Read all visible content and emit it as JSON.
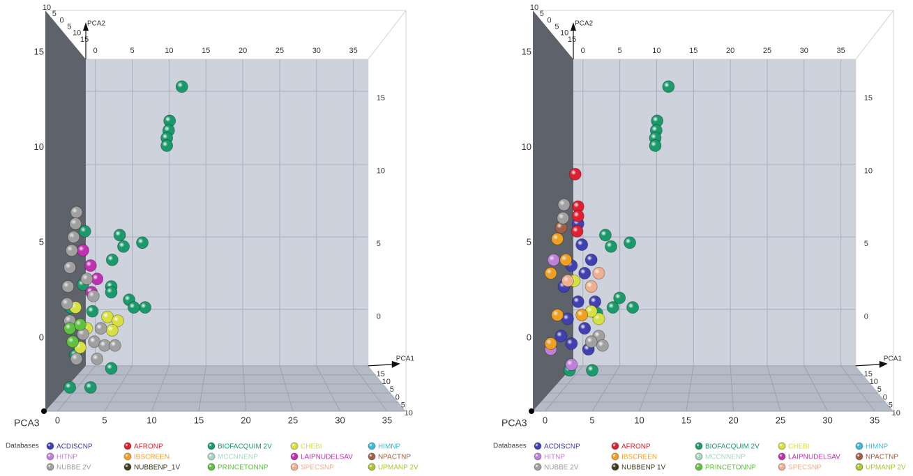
{
  "chart_data": [
    {
      "type": "scatter3d",
      "x_label": "PCA1",
      "z_label": "PCA2",
      "y_label": "PCA3",
      "legend_title": "Databases",
      "xlim": [
        -1.3,
        37
      ],
      "ylim": [
        -3.85,
        17.2
      ],
      "zlim": [
        -10,
        15
      ],
      "xticks": [
        0,
        5,
        10,
        15,
        20,
        25,
        30,
        35
      ],
      "yticks": [
        0,
        5,
        10,
        15
      ],
      "zticks": [
        {
          "value": -10,
          "label": "10"
        },
        {
          "value": -5,
          "label": "5"
        },
        0,
        5,
        10,
        15
      ],
      "series": [
        {
          "name": "ACDISCNP",
          "color": "#4040b0",
          "x": [],
          "y": []
        },
        {
          "name": "AFRONP",
          "color": "#e02030",
          "x": [],
          "y": []
        },
        {
          "name": "BIOFACQUIM 2V",
          "color": "#1a9a6a",
          "x": [
            13.2,
            11.9,
            11.8,
            11.6,
            11.6,
            6.6,
            7.0,
            9.0,
            5.8,
            5.7,
            5.7,
            7.6,
            9.3,
            8.1,
            2.9,
            3.7,
            2.7,
            5.7,
            3.5,
            1.3,
            1.9,
            1.4
          ],
          "y": [
            13.2,
            11.4,
            10.9,
            10.5,
            10.1,
            5.4,
            4.8,
            5.0,
            4.1,
            2.7,
            2.4,
            2.0,
            1.6,
            1.6,
            5.6,
            1.4,
            2.8,
            -1.6,
            -2.6,
            -2.6,
            -0.9,
            1.6
          ]
        },
        {
          "name": "CHEBI",
          "color": "#d8e040",
          "x": [
            5.3,
            6.4,
            5.8,
            1.9,
            3.1,
            2.4
          ],
          "y": [
            1.1,
            0.9,
            0.4,
            1.6,
            0.5,
            -0.5
          ]
        },
        {
          "name": "HIMNP",
          "color": "#40b8d8",
          "x": [],
          "y": []
        },
        {
          "name": "HITNP",
          "color": "#c080d8",
          "x": [],
          "y": []
        },
        {
          "name": "IBSCREEN",
          "color": "#f0a020",
          "x": [],
          "y": []
        },
        {
          "name": "MCCNNENP",
          "color": "#a8d8c0",
          "x": [],
          "y": []
        },
        {
          "name": "LAIPNUDELSAV",
          "color": "#c030b0",
          "x": [
            3.5,
            4.2,
            3.6,
            2.7
          ],
          "y": [
            3.8,
            3.1,
            2.4,
            4.6
          ]
        },
        {
          "name": "NPACTNP",
          "color": "#a06048",
          "x": [],
          "y": []
        },
        {
          "name": "NUBBE 2V",
          "color": "#a0a0a0",
          "x": [
            2.0,
            1.9,
            1.7,
            1.5,
            1.3,
            1.1,
            1.0,
            1.3,
            2.7,
            3.9,
            5.0,
            6.1,
            4.6,
            3.1,
            3.8,
            2.0,
            4.2
          ],
          "y": [
            6.6,
            6.0,
            5.3,
            4.6,
            3.7,
            2.7,
            1.8,
            0.9,
            0.2,
            -0.2,
            -0.4,
            -0.4,
            0.5,
            3.1,
            2.2,
            -1.1,
            -1.1
          ]
        },
        {
          "name": "NUBBENP_1V",
          "color": "#404020",
          "x": [],
          "y": []
        },
        {
          "name": "PRINCETONNP",
          "color": "#60c040",
          "x": [
            1.3,
            2.4,
            1.6
          ],
          "y": [
            0.5,
            0.7,
            -0.2
          ]
        },
        {
          "name": "SPECSNP",
          "color": "#f0b090",
          "x": [],
          "y": []
        },
        {
          "name": "UPMANP 2V",
          "color": "#a8c830",
          "x": [],
          "y": []
        }
      ]
    },
    {
      "type": "scatter3d",
      "x_label": "PCA1",
      "z_label": "PCA2",
      "y_label": "PCA3",
      "legend_title": "Databases",
      "xlim": [
        -1.3,
        37
      ],
      "ylim": [
        -3.85,
        17.2
      ],
      "zlim": [
        -10,
        15
      ],
      "xticks": [
        0,
        5,
        10,
        15,
        20,
        25,
        30,
        35
      ],
      "yticks": [
        0,
        5,
        10,
        15
      ],
      "zticks": [
        {
          "value": -10,
          "label": "10"
        },
        {
          "value": -5,
          "label": "5"
        },
        0,
        5,
        10,
        15
      ],
      "series": [
        {
          "name": "ACDISCNP",
          "color": "#4040b0",
          "x": [
            3.5,
            3.9,
            2.8,
            4.2,
            2.0,
            3.5,
            2.4,
            4.2,
            2.8,
            4.6,
            1.7,
            5.3,
            4.9
          ],
          "y": [
            6.0,
            4.9,
            3.8,
            3.4,
            2.7,
            1.9,
            1.0,
            0.5,
            -0.3,
            -0.6,
            0.1,
            1.9,
            4.1
          ]
        },
        {
          "name": "AFRONP",
          "color": "#e02030",
          "x": [
            3.2,
            3.5,
            3.5,
            3.4
          ],
          "y": [
            8.6,
            6.9,
            6.4,
            5.6
          ]
        },
        {
          "name": "BIOFACQUIM 2V",
          "color": "#1a9a6a",
          "x": [
            13.1,
            11.9,
            11.8,
            11.7,
            11.7,
            6.4,
            7.0,
            9.0,
            7.9,
            9.3,
            7.2,
            5.5,
            5.0,
            2.6
          ],
          "y": [
            13.2,
            11.4,
            10.9,
            10.5,
            10.1,
            5.4,
            4.8,
            5.0,
            2.1,
            1.6,
            1.6,
            1.3,
            -1.7,
            -1.7
          ]
        },
        {
          "name": "CHEBI",
          "color": "#d8e040",
          "x": [
            3.1,
            5.7,
            4.9
          ],
          "y": [
            3.0,
            1.0,
            1.4
          ]
        },
        {
          "name": "HIMNP",
          "color": "#40b8d8",
          "x": [],
          "y": []
        },
        {
          "name": "HITNP",
          "color": "#c080d8",
          "x": [
            0.9,
            0.6,
            2.8
          ],
          "y": [
            4.1,
            -0.6,
            -1.4
          ]
        },
        {
          "name": "IBSCREEN",
          "color": "#f0a020",
          "x": [
            1.3,
            0.6,
            2.2,
            1.3,
            3.9,
            0.6
          ],
          "y": [
            5.2,
            3.4,
            4.1,
            1.2,
            1.2,
            -0.3
          ]
        },
        {
          "name": "MCCNNENP",
          "color": "#a8d8c0",
          "x": [],
          "y": []
        },
        {
          "name": "LAIPNUDELSAV",
          "color": "#c030b0",
          "x": [],
          "y": []
        },
        {
          "name": "NPACTNP",
          "color": "#a06048",
          "x": [
            1.7
          ],
          "y": [
            5.8
          ]
        },
        {
          "name": "NUBBE 2V",
          "color": "#a0a0a0",
          "x": [
            2.0,
            1.9,
            5.7,
            6.1,
            4.9
          ],
          "y": [
            7.0,
            6.3,
            0.1,
            -0.4,
            -0.2
          ]
        },
        {
          "name": "NUBBENP 1V",
          "color": "#404020",
          "x": [],
          "y": []
        },
        {
          "name": "PRINCETONNP",
          "color": "#60c040",
          "x": [],
          "y": []
        },
        {
          "name": "SPECSNP",
          "color": "#f0b090",
          "x": [
            5.7,
            4.9,
            2.4
          ],
          "y": [
            3.4,
            2.7,
            3.0
          ]
        },
        {
          "name": "UPMANP 2V",
          "color": "#a8c830",
          "x": [],
          "y": []
        }
      ]
    }
  ]
}
